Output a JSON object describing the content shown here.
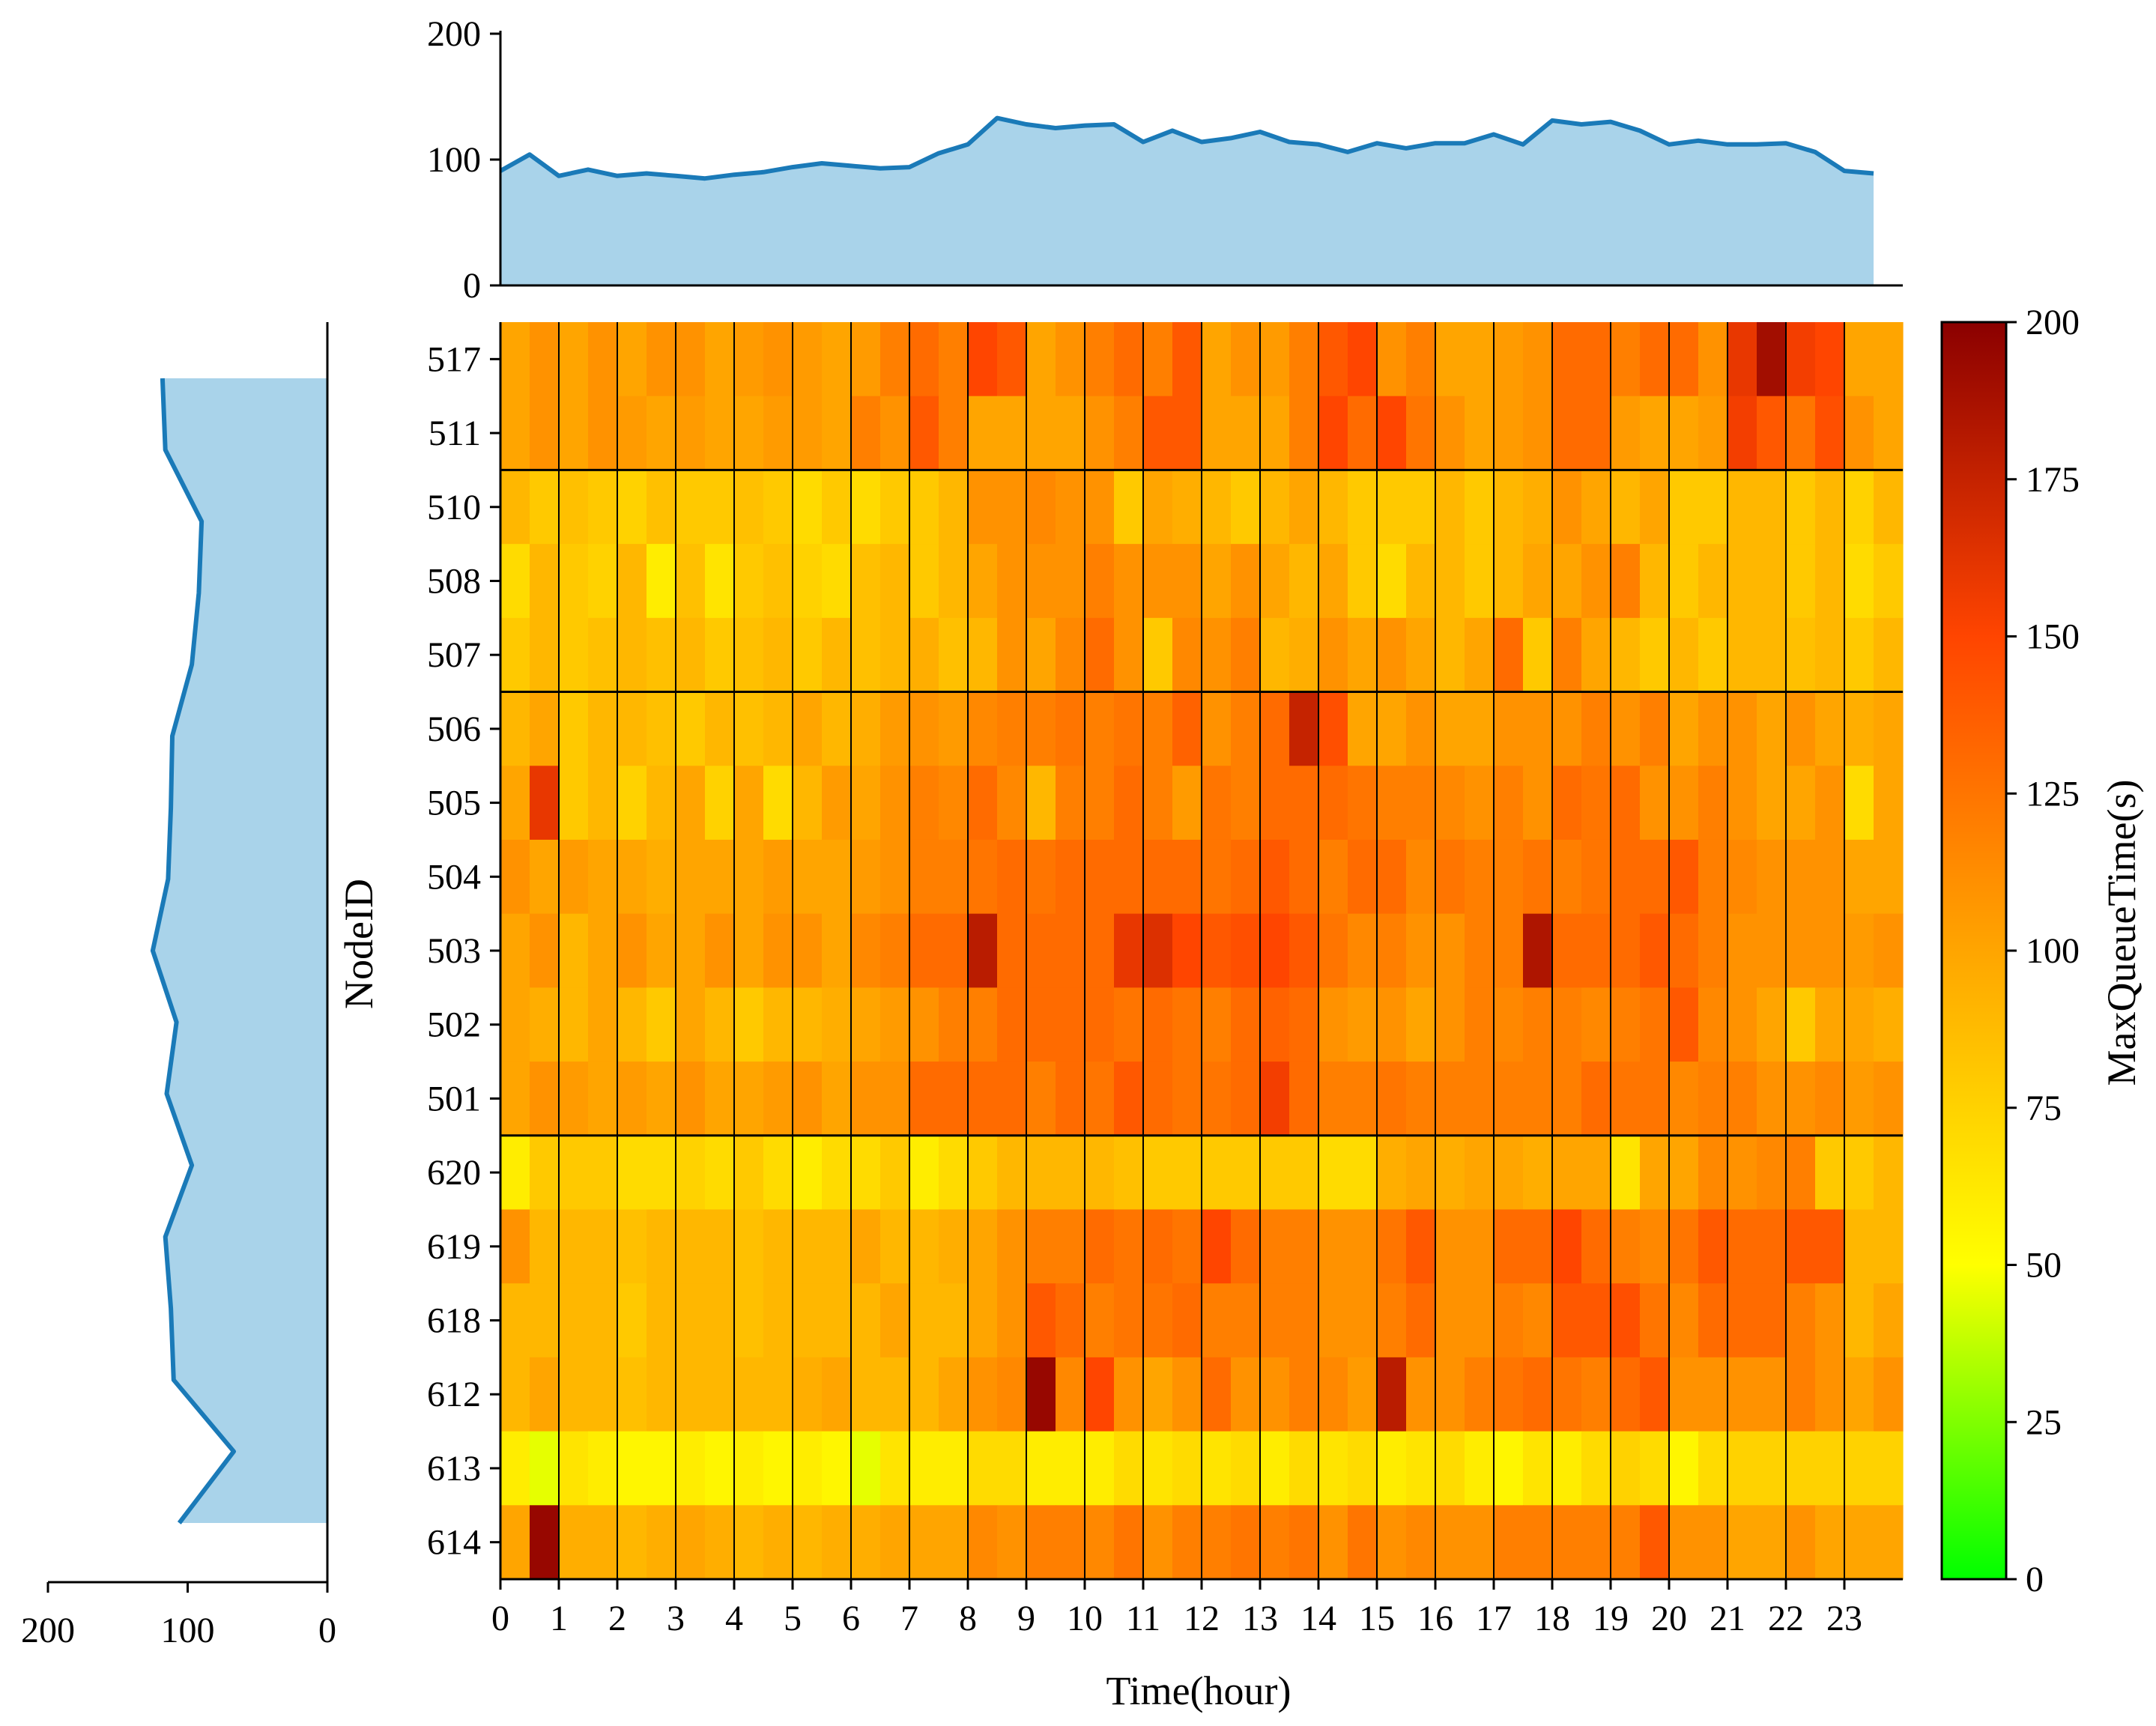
{
  "chart_data": {
    "type": "heatmap",
    "title": "",
    "xlabel": "Time(hour)",
    "ylabel": "NodeID",
    "colorbar_label": "MaxQueueTime(s)",
    "colorbar_ticks": [
      0,
      25,
      50,
      75,
      100,
      125,
      150,
      175,
      200
    ],
    "colorbar_range": [
      0,
      200
    ],
    "colormap": [
      "#00ff00",
      "#ffff00",
      "#ffa500",
      "#ff4500",
      "#8b0000"
    ],
    "x_ticks": [
      0,
      1,
      2,
      3,
      4,
      5,
      6,
      7,
      8,
      9,
      10,
      11,
      12,
      13,
      14,
      15,
      16,
      17,
      18,
      19,
      20,
      21,
      22,
      23
    ],
    "x_range": [
      0,
      24
    ],
    "x_bins": [
      0,
      0.5,
      1,
      1.5,
      2,
      2.5,
      3,
      3.5,
      4,
      4.5,
      5,
      5.5,
      6,
      6.5,
      7,
      7.5,
      8,
      8.5,
      9,
      9.5,
      10,
      10.5,
      11,
      11.5,
      12,
      12.5,
      13,
      13.5,
      14,
      14.5,
      15,
      15.5,
      16,
      16.5,
      17,
      17.5,
      18,
      18.5,
      19,
      19.5,
      20,
      20.5,
      21,
      21.5,
      22,
      22.5,
      23,
      23.5
    ],
    "nodes": [
      "517",
      "511",
      "510",
      "508",
      "507",
      "506",
      "505",
      "504",
      "503",
      "502",
      "501",
      "620",
      "619",
      "618",
      "612",
      "613",
      "614"
    ],
    "group_separators_after_rows": [
      2,
      5,
      11
    ],
    "values": [
      [
        100,
        110,
        100,
        110,
        100,
        110,
        110,
        100,
        105,
        110,
        105,
        100,
        105,
        120,
        130,
        120,
        150,
        140,
        100,
        110,
        120,
        130,
        120,
        140,
        100,
        110,
        105,
        120,
        140,
        150,
        110,
        120,
        100,
        100,
        105,
        110,
        130,
        130,
        120,
        130,
        130,
        110,
        160,
        190,
        155,
        150,
        100,
        100
      ],
      [
        100,
        110,
        100,
        110,
        105,
        100,
        105,
        100,
        100,
        105,
        105,
        100,
        120,
        110,
        140,
        120,
        100,
        100,
        100,
        100,
        110,
        120,
        140,
        140,
        100,
        100,
        100,
        120,
        150,
        130,
        150,
        125,
        110,
        100,
        105,
        110,
        130,
        130,
        105,
        100,
        100,
        105,
        155,
        140,
        125,
        145,
        110,
        100
      ],
      [
        90,
        80,
        85,
        80,
        75,
        85,
        80,
        80,
        85,
        80,
        70,
        80,
        70,
        80,
        80,
        90,
        110,
        110,
        115,
        110,
        110,
        80,
        100,
        95,
        90,
        80,
        90,
        100,
        90,
        80,
        80,
        80,
        90,
        80,
        90,
        95,
        110,
        100,
        90,
        100,
        80,
        80,
        90,
        90,
        80,
        90,
        75,
        90
      ],
      [
        70,
        90,
        80,
        75,
        90,
        60,
        85,
        65,
        80,
        85,
        75,
        70,
        85,
        90,
        80,
        90,
        100,
        110,
        110,
        110,
        120,
        110,
        110,
        110,
        100,
        110,
        100,
        90,
        100,
        80,
        70,
        90,
        90,
        80,
        90,
        100,
        100,
        110,
        120,
        90,
        80,
        90,
        90,
        90,
        80,
        90,
        70,
        80
      ],
      [
        80,
        90,
        80,
        85,
        90,
        85,
        90,
        80,
        85,
        90,
        80,
        90,
        85,
        90,
        95,
        85,
        90,
        110,
        100,
        115,
        130,
        110,
        80,
        115,
        110,
        120,
        90,
        95,
        110,
        100,
        110,
        100,
        90,
        100,
        130,
        80,
        120,
        100,
        90,
        80,
        90,
        80,
        90,
        90,
        85,
        90,
        80,
        90
      ],
      [
        90,
        100,
        80,
        90,
        90,
        85,
        80,
        90,
        85,
        90,
        100,
        90,
        95,
        105,
        110,
        105,
        115,
        120,
        120,
        125,
        120,
        125,
        120,
        135,
        110,
        120,
        130,
        175,
        145,
        100,
        100,
        110,
        100,
        100,
        110,
        110,
        110,
        120,
        110,
        120,
        100,
        110,
        110,
        100,
        110,
        100,
        95,
        100
      ],
      [
        100,
        160,
        80,
        90,
        75,
        90,
        100,
        75,
        100,
        70,
        90,
        105,
        100,
        110,
        120,
        115,
        130,
        115,
        90,
        120,
        120,
        130,
        120,
        105,
        125,
        120,
        130,
        130,
        130,
        125,
        120,
        120,
        115,
        110,
        120,
        110,
        130,
        125,
        130,
        110,
        110,
        120,
        110,
        100,
        100,
        110,
        70,
        100
      ],
      [
        110,
        100,
        105,
        100,
        100,
        95,
        100,
        100,
        100,
        105,
        100,
        100,
        105,
        110,
        120,
        120,
        125,
        130,
        125,
        130,
        130,
        130,
        130,
        130,
        125,
        130,
        140,
        130,
        120,
        130,
        130,
        115,
        125,
        120,
        120,
        125,
        120,
        125,
        130,
        130,
        140,
        120,
        115,
        110,
        110,
        110,
        100,
        100
      ],
      [
        100,
        110,
        90,
        100,
        110,
        100,
        100,
        110,
        100,
        110,
        110,
        100,
        115,
        120,
        130,
        130,
        180,
        130,
        130,
        130,
        130,
        160,
        165,
        150,
        140,
        145,
        150,
        140,
        125,
        115,
        120,
        110,
        110,
        120,
        120,
        185,
        130,
        130,
        130,
        140,
        130,
        120,
        110,
        110,
        110,
        110,
        105,
        110
      ],
      [
        100,
        95,
        90,
        100,
        90,
        80,
        100,
        90,
        80,
        90,
        90,
        95,
        100,
        105,
        110,
        120,
        120,
        130,
        130,
        130,
        130,
        125,
        130,
        125,
        120,
        130,
        135,
        130,
        110,
        105,
        110,
        100,
        110,
        120,
        115,
        120,
        120,
        115,
        120,
        125,
        140,
        115,
        110,
        100,
        80,
        100,
        100,
        95
      ],
      [
        100,
        110,
        105,
        100,
        105,
        100,
        110,
        100,
        100,
        105,
        110,
        100,
        110,
        110,
        130,
        130,
        130,
        130,
        120,
        130,
        125,
        140,
        130,
        125,
        125,
        130,
        155,
        130,
        120,
        120,
        125,
        120,
        120,
        120,
        120,
        120,
        120,
        130,
        125,
        125,
        115,
        120,
        120,
        110,
        110,
        115,
        105,
        110
      ],
      [
        60,
        80,
        80,
        80,
        70,
        70,
        75,
        70,
        80,
        70,
        60,
        70,
        70,
        80,
        60,
        70,
        80,
        90,
        90,
        90,
        90,
        85,
        80,
        80,
        80,
        80,
        80,
        80,
        70,
        70,
        95,
        100,
        95,
        100,
        100,
        95,
        100,
        100,
        65,
        100,
        100,
        115,
        110,
        115,
        120,
        80,
        80,
        90
      ],
      [
        110,
        90,
        90,
        90,
        85,
        90,
        90,
        90,
        85,
        90,
        90,
        90,
        100,
        90,
        90,
        95,
        100,
        110,
        120,
        120,
        130,
        125,
        130,
        125,
        150,
        130,
        120,
        120,
        110,
        110,
        125,
        140,
        110,
        110,
        130,
        130,
        150,
        130,
        120,
        115,
        125,
        140,
        130,
        130,
        140,
        140,
        90,
        90
      ],
      [
        90,
        90,
        90,
        90,
        80,
        90,
        90,
        90,
        85,
        90,
        90,
        90,
        90,
        100,
        90,
        90,
        100,
        110,
        140,
        130,
        120,
        125,
        125,
        130,
        120,
        120,
        120,
        120,
        110,
        110,
        120,
        130,
        110,
        110,
        120,
        115,
        140,
        140,
        145,
        125,
        115,
        130,
        130,
        130,
        120,
        110,
        90,
        100
      ],
      [
        90,
        100,
        90,
        90,
        85,
        90,
        90,
        90,
        90,
        90,
        95,
        100,
        90,
        90,
        90,
        100,
        110,
        115,
        195,
        115,
        150,
        110,
        100,
        110,
        130,
        110,
        110,
        120,
        115,
        105,
        180,
        110,
        110,
        120,
        125,
        130,
        125,
        120,
        130,
        140,
        110,
        110,
        110,
        110,
        120,
        110,
        100,
        110
      ],
      [
        60,
        45,
        65,
        60,
        55,
        55,
        60,
        55,
        60,
        55,
        60,
        55,
        45,
        65,
        60,
        60,
        70,
        70,
        60,
        60,
        60,
        70,
        65,
        70,
        65,
        70,
        60,
        70,
        65,
        70,
        60,
        65,
        70,
        60,
        55,
        65,
        60,
        70,
        75,
        70,
        55,
        70,
        75,
        75,
        75,
        75,
        75,
        75
      ],
      [
        100,
        195,
        95,
        95,
        90,
        95,
        100,
        95,
        90,
        95,
        90,
        95,
        95,
        100,
        100,
        100,
        115,
        110,
        120,
        120,
        115,
        125,
        110,
        120,
        120,
        125,
        120,
        125,
        110,
        125,
        110,
        115,
        110,
        110,
        120,
        120,
        120,
        120,
        120,
        140,
        110,
        110,
        100,
        100,
        110,
        100,
        100,
        100
      ]
    ],
    "top_marginal": {
      "type": "area",
      "x": [
        0,
        0.5,
        1,
        1.5,
        2,
        2.5,
        3,
        3.5,
        4,
        4.5,
        5,
        5.5,
        6,
        6.5,
        7,
        7.5,
        8,
        8.5,
        9,
        9.5,
        10,
        10.5,
        11,
        11.5,
        12,
        12.5,
        13,
        13.5,
        14,
        14.5,
        15,
        15.5,
        16,
        16.5,
        17,
        17.5,
        18,
        18.5,
        19,
        19.5,
        20,
        20.5,
        21,
        21.5,
        22,
        22.5,
        23,
        23.5
      ],
      "values": [
        91,
        104,
        87,
        92,
        87,
        89,
        87,
        85,
        88,
        90,
        94,
        97,
        95,
        93,
        94,
        105,
        112,
        133,
        128,
        125,
        127,
        128,
        114,
        123,
        114,
        117,
        122,
        114,
        112,
        106,
        113,
        109,
        113,
        113,
        120,
        112,
        131,
        128,
        130,
        123,
        112,
        115,
        112,
        112,
        113,
        106,
        91,
        89
      ],
      "ylim": [
        0,
        200
      ],
      "ticks": [
        0,
        100,
        200
      ]
    },
    "left_marginal": {
      "type": "area",
      "orientation": "horizontal-reversed",
      "values": [
        118,
        116,
        90,
        92,
        97,
        111,
        112,
        114,
        125,
        108,
        115,
        97,
        116,
        112,
        110,
        67,
        106
      ],
      "xlim": [
        200,
        0
      ],
      "ticks": [
        200,
        100,
        0
      ]
    }
  }
}
